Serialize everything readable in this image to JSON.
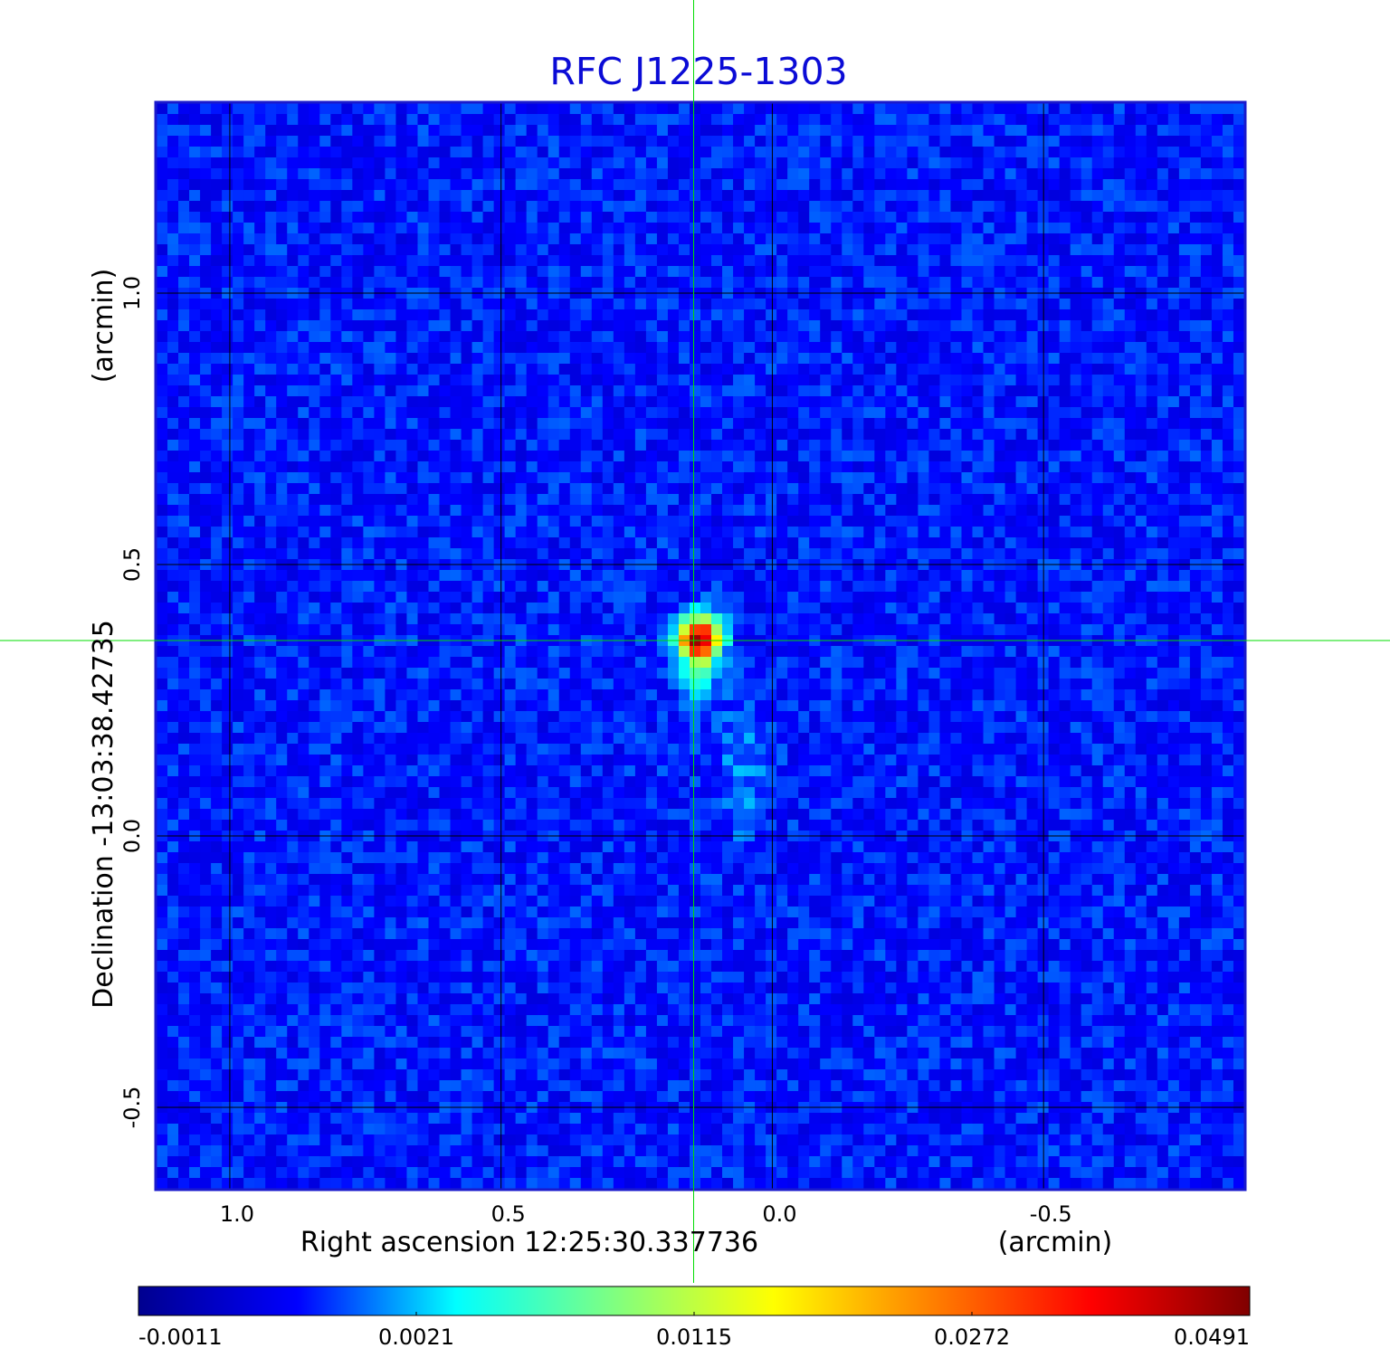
{
  "chart_data": {
    "type": "heatmap",
    "title": "RFC J1225-1303",
    "xlabel": "Right ascension  12:25:30.337736",
    "xunit": "(arcmin)",
    "ylabel": "Declination  -13:03:38.42735",
    "yunit": "(arcmin)",
    "x_direction": "decreasing to the right",
    "xlim": [
      1.135,
      -0.87
    ],
    "ylim": [
      -0.65,
      1.35
    ],
    "xticks": [
      "1.0",
      "0.5",
      "0.0",
      "-0.5"
    ],
    "xtick_values": [
      1.0,
      0.5,
      0.0,
      -0.5
    ],
    "yticks": [
      "-0.5",
      "0.0",
      "0.5",
      "1.0"
    ],
    "ytick_values": [
      -0.5,
      0.0,
      0.5,
      1.0
    ],
    "grid": true,
    "crosshair": {
      "x": 0.145,
      "y": 0.36
    },
    "peak": {
      "x": 0.135,
      "y": 0.365,
      "value": 0.0491
    },
    "colorbar": {
      "ticks": [
        "-0.0011",
        "0.0021",
        "0.0115",
        "0.0272",
        "0.0491"
      ],
      "colormap": [
        "#00008f",
        "#0000ff",
        "#00ffff",
        "#80ff80",
        "#ffff00",
        "#ff8000",
        "#ff0000",
        "#800000"
      ]
    }
  },
  "colors": {
    "title": "#0b0bd6",
    "frame": "#1a1acc",
    "background_field": "#1c4fe8",
    "grid": "#000000",
    "crosshair": "#00dd00"
  }
}
